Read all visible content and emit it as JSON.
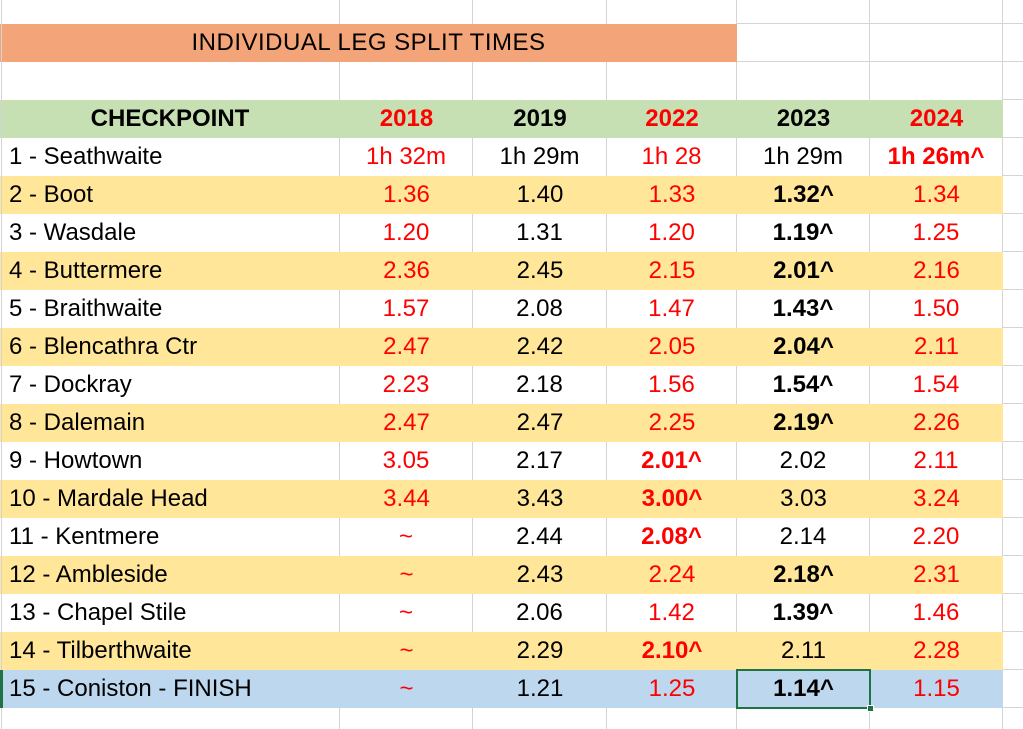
{
  "title": "INDIVIDUAL LEG SPLIT TIMES",
  "colors": {
    "banner_bg": "#F3A478",
    "header_bg": "#C6E0B4",
    "yellow_row_bg": "#FFE699",
    "blue_row_bg": "#BDD7EE",
    "red_text": "#FF0000",
    "black_text": "#000000",
    "gridline": "#D4D4D4",
    "selection_green": "#1E7244"
  },
  "header": {
    "checkpoint": "CHECKPOINT",
    "years": [
      {
        "label": "2018",
        "color": "red"
      },
      {
        "label": "2019",
        "color": "black"
      },
      {
        "label": "2022",
        "color": "red"
      },
      {
        "label": "2023",
        "color": "black"
      },
      {
        "label": "2024",
        "color": "red"
      }
    ]
  },
  "rows": [
    {
      "name": "1 - Seathwaite",
      "fill": "white",
      "values": [
        {
          "t": "1h 32m",
          "c": "red"
        },
        {
          "t": "1h 29m",
          "c": "black"
        },
        {
          "t": "1h 28",
          "c": "red"
        },
        {
          "t": "1h 29m",
          "c": "black"
        },
        {
          "t": "1h 26m^",
          "c": "red",
          "b": true
        }
      ]
    },
    {
      "name": "2 - Boot",
      "fill": "yellow",
      "values": [
        {
          "t": "1.36",
          "c": "red"
        },
        {
          "t": "1.40",
          "c": "black"
        },
        {
          "t": "1.33",
          "c": "red"
        },
        {
          "t": "1.32^",
          "c": "black",
          "b": true
        },
        {
          "t": "1.34",
          "c": "red"
        }
      ]
    },
    {
      "name": "3 - Wasdale",
      "fill": "white",
      "values": [
        {
          "t": "1.20",
          "c": "red"
        },
        {
          "t": "1.31",
          "c": "black"
        },
        {
          "t": "1.20",
          "c": "red"
        },
        {
          "t": "1.19^",
          "c": "black",
          "b": true
        },
        {
          "t": "1.25",
          "c": "red"
        }
      ]
    },
    {
      "name": "4 - Buttermere",
      "fill": "yellow",
      "values": [
        {
          "t": "2.36",
          "c": "red"
        },
        {
          "t": "2.45",
          "c": "black"
        },
        {
          "t": "2.15",
          "c": "red"
        },
        {
          "t": "2.01^",
          "c": "black",
          "b": true
        },
        {
          "t": "2.16",
          "c": "red"
        }
      ]
    },
    {
      "name": "5 - Braithwaite",
      "fill": "white",
      "values": [
        {
          "t": "1.57",
          "c": "red"
        },
        {
          "t": "2.08",
          "c": "black"
        },
        {
          "t": "1.47",
          "c": "red"
        },
        {
          "t": "1.43^",
          "c": "black",
          "b": true
        },
        {
          "t": "1.50",
          "c": "red"
        }
      ]
    },
    {
      "name": "6 - Blencathra Ctr",
      "fill": "yellow",
      "values": [
        {
          "t": "2.47",
          "c": "red"
        },
        {
          "t": "2.42",
          "c": "black"
        },
        {
          "t": "2.05",
          "c": "red"
        },
        {
          "t": "2.04^",
          "c": "black",
          "b": true
        },
        {
          "t": "2.11",
          "c": "red"
        }
      ]
    },
    {
      "name": "7 - Dockray",
      "fill": "white",
      "values": [
        {
          "t": "2.23",
          "c": "red"
        },
        {
          "t": "2.18",
          "c": "black"
        },
        {
          "t": "1.56",
          "c": "red"
        },
        {
          "t": "1.54^",
          "c": "black",
          "b": true
        },
        {
          "t": "1.54",
          "c": "red"
        }
      ]
    },
    {
      "name": "8 - Dalemain",
      "fill": "yellow",
      "values": [
        {
          "t": "2.47",
          "c": "red"
        },
        {
          "t": "2.47",
          "c": "black"
        },
        {
          "t": "2.25",
          "c": "red"
        },
        {
          "t": "2.19^",
          "c": "black",
          "b": true
        },
        {
          "t": "2.26",
          "c": "red"
        }
      ]
    },
    {
      "name": "9 - Howtown",
      "fill": "white",
      "values": [
        {
          "t": "3.05",
          "c": "red"
        },
        {
          "t": "2.17",
          "c": "black"
        },
        {
          "t": "2.01^",
          "c": "red",
          "b": true
        },
        {
          "t": "2.02",
          "c": "black"
        },
        {
          "t": "2.11",
          "c": "red"
        }
      ]
    },
    {
      "name": "10 - Mardale Head",
      "fill": "yellow",
      "values": [
        {
          "t": "3.44",
          "c": "red"
        },
        {
          "t": "3.43",
          "c": "black"
        },
        {
          "t": "3.00^",
          "c": "red",
          "b": true
        },
        {
          "t": "3.03",
          "c": "black"
        },
        {
          "t": "3.24",
          "c": "red"
        }
      ]
    },
    {
      "name": "11 - Kentmere",
      "fill": "white",
      "values": [
        {
          "t": "~",
          "c": "red"
        },
        {
          "t": "2.44",
          "c": "black"
        },
        {
          "t": "2.08^",
          "c": "red",
          "b": true
        },
        {
          "t": "2.14",
          "c": "black"
        },
        {
          "t": "2.20",
          "c": "red"
        }
      ]
    },
    {
      "name": "12 - Ambleside",
      "fill": "yellow",
      "values": [
        {
          "t": "~",
          "c": "red"
        },
        {
          "t": "2.43",
          "c": "black"
        },
        {
          "t": "2.24",
          "c": "red"
        },
        {
          "t": "2.18^",
          "c": "black",
          "b": true
        },
        {
          "t": "2.31",
          "c": "red"
        }
      ]
    },
    {
      "name": "13 - Chapel Stile",
      "fill": "white",
      "values": [
        {
          "t": "~",
          "c": "red"
        },
        {
          "t": "2.06",
          "c": "black"
        },
        {
          "t": "1.42",
          "c": "red"
        },
        {
          "t": "1.39^",
          "c": "black",
          "b": true
        },
        {
          "t": "1.46",
          "c": "red"
        }
      ]
    },
    {
      "name": "14 - Tilberthwaite",
      "fill": "yellow",
      "values": [
        {
          "t": "~",
          "c": "red"
        },
        {
          "t": "2.29",
          "c": "black"
        },
        {
          "t": "2.10^",
          "c": "red",
          "b": true
        },
        {
          "t": "2.11",
          "c": "black"
        },
        {
          "t": "2.28",
          "c": "red"
        }
      ]
    },
    {
      "name": "15 - Coniston - FINISH",
      "fill": "blue",
      "values": [
        {
          "t": "~",
          "c": "red"
        },
        {
          "t": "1.21",
          "c": "black"
        },
        {
          "t": "1.25",
          "c": "red"
        },
        {
          "t": "1.14^",
          "c": "black",
          "b": true
        },
        {
          "t": "1.15",
          "c": "red"
        }
      ]
    }
  ],
  "selection": {
    "row_index": 14,
    "value_index": 3,
    "selected_value": "1.14^"
  }
}
